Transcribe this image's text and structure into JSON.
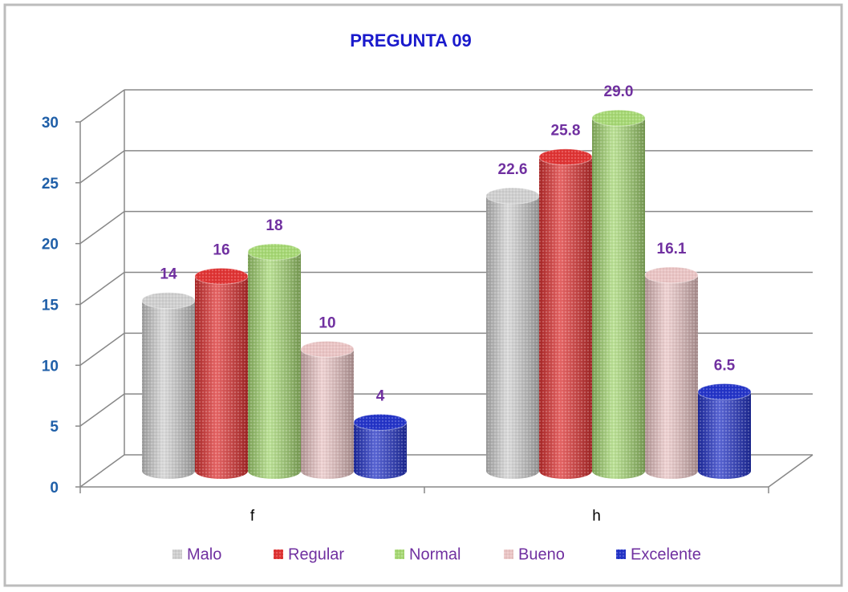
{
  "chart_data": {
    "type": "bar3d",
    "title": "PREGUNTA 09",
    "categories": [
      "f",
      "h"
    ],
    "series": [
      {
        "name": "Malo",
        "color": "#cfcfcf",
        "values": [
          14,
          22.6
        ],
        "value_labels": [
          "14",
          "22.6"
        ]
      },
      {
        "name": "Regular",
        "color": "#e03434",
        "values": [
          16,
          25.8
        ],
        "value_labels": [
          "16",
          "25.8"
        ]
      },
      {
        "name": "Normal",
        "color": "#a6d874",
        "values": [
          18,
          29.0
        ],
        "value_labels": [
          "18",
          "29.0"
        ]
      },
      {
        "name": "Bueno",
        "color": "#eac4c4",
        "values": [
          10,
          16.1
        ],
        "value_labels": [
          "10",
          "16.1"
        ]
      },
      {
        "name": "Excelente",
        "color": "#2434c8",
        "values": [
          4,
          6.5
        ],
        "value_labels": [
          "4",
          "6.5"
        ]
      }
    ],
    "ylim": [
      0,
      30
    ],
    "yticks": [
      0,
      5,
      10,
      15,
      20,
      25,
      30
    ],
    "grid": true,
    "legend": "bottom"
  }
}
